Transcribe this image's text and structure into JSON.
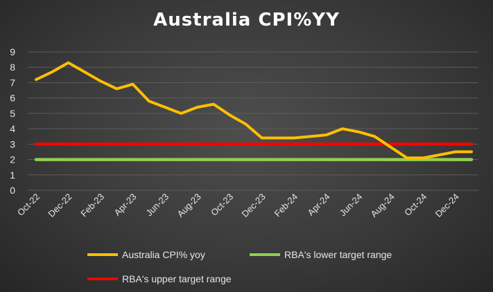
{
  "chart_data": {
    "type": "line",
    "title": "Australia CPI%YY",
    "x": [
      "Oct-22",
      "Nov-22",
      "Dec-22",
      "Jan-23",
      "Feb-23",
      "Mar-23",
      "Apr-23",
      "May-23",
      "Jun-23",
      "Jul-23",
      "Aug-23",
      "Sep-23",
      "Oct-23",
      "Nov-23",
      "Dec-23",
      "Jan-24",
      "Feb-24",
      "Mar-24",
      "Apr-24",
      "May-24",
      "Jun-24",
      "Jul-24",
      "Aug-24",
      "Sep-24",
      "Oct-24",
      "Nov-24",
      "Dec-24",
      "Jan-25"
    ],
    "xtick_labels": [
      "Oct-22",
      "Dec-22",
      "Feb-23",
      "Apr-23",
      "Jun-23",
      "Aug-23",
      "Oct-23",
      "Dec-23",
      "Feb-24",
      "Apr-24",
      "Jun-24",
      "Aug-24",
      "Oct-24",
      "Dec-24"
    ],
    "yticks": [
      0,
      1,
      2,
      3,
      4,
      5,
      6,
      7,
      8,
      9
    ],
    "ylim": [
      0,
      9
    ],
    "grid": true,
    "legend_position": "bottom",
    "series": [
      {
        "name": "Australia CPI% yoy",
        "color": "#ffc000",
        "values": [
          7.2,
          7.7,
          8.3,
          7.7,
          7.1,
          6.6,
          6.9,
          5.8,
          5.4,
          5.0,
          5.4,
          5.6,
          4.9,
          4.3,
          3.4,
          3.4,
          3.4,
          3.5,
          3.6,
          4.0,
          3.8,
          3.5,
          2.8,
          2.1,
          2.1,
          2.3,
          2.5,
          2.5
        ]
      },
      {
        "name": "RBA's lower target range",
        "color": "#92d050",
        "values": [
          2,
          2,
          2,
          2,
          2,
          2,
          2,
          2,
          2,
          2,
          2,
          2,
          2,
          2,
          2,
          2,
          2,
          2,
          2,
          2,
          2,
          2,
          2,
          2,
          2,
          2,
          2,
          2
        ]
      },
      {
        "name": "RBA's upper target range",
        "color": "#ff0000",
        "values": [
          3,
          3,
          3,
          3,
          3,
          3,
          3,
          3,
          3,
          3,
          3,
          3,
          3,
          3,
          3,
          3,
          3,
          3,
          3,
          3,
          3,
          3,
          3,
          3,
          3,
          3,
          3,
          3
        ]
      }
    ]
  }
}
